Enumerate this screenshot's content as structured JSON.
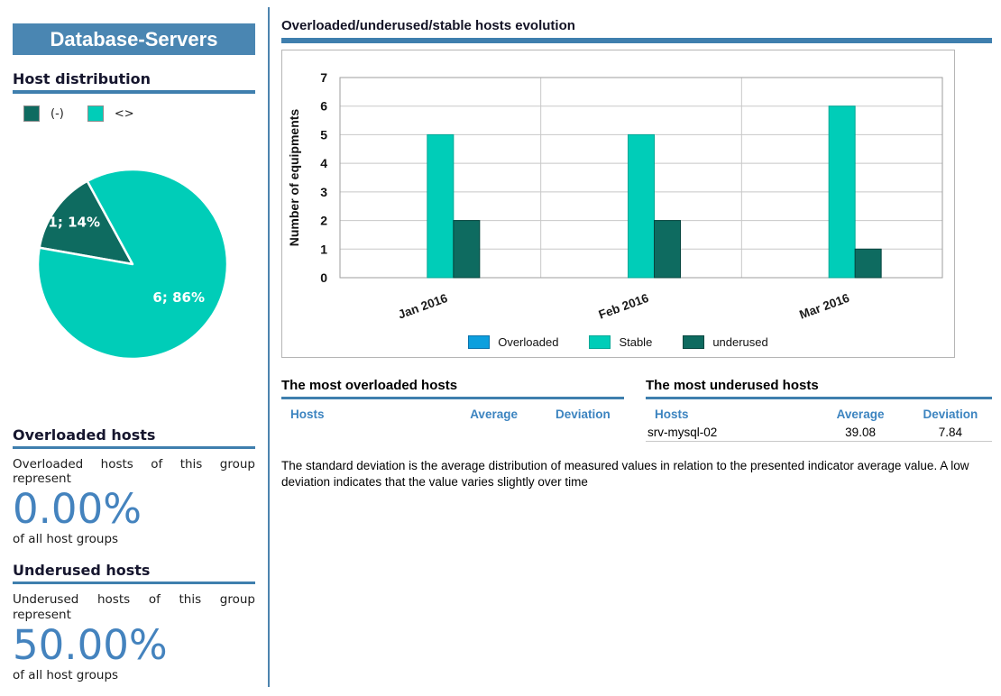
{
  "panel": {
    "title": "Database-Servers",
    "host_distribution": {
      "heading": "Host distribution",
      "legend": [
        {
          "label": "(-)",
          "color": "#0E6B60"
        },
        {
          "label": "<>",
          "color": "#00CDB8"
        }
      ]
    },
    "overloaded": {
      "heading": "Overloaded hosts",
      "text": "Overloaded hosts of this group represent",
      "value": "0.00%",
      "suffix": "of all host groups"
    },
    "underused": {
      "heading": "Underused hosts",
      "text": "Underused hosts of this group represent",
      "value": "50.00%",
      "suffix": "of all host groups"
    }
  },
  "main": {
    "chart_heading": "Overloaded/underused/stable hosts evolution",
    "overloaded_table": {
      "heading": "The most overloaded hosts",
      "columns": [
        "Hosts",
        "Average",
        "Deviation"
      ],
      "rows": []
    },
    "underused_table": {
      "heading": "The most underused hosts",
      "columns": [
        "Hosts",
        "Average",
        "Deviation"
      ],
      "rows": [
        [
          "srv-mysql-02",
          "39.08",
          "7.84"
        ]
      ]
    },
    "note": "The standard deviation is the average distribution of measured values in relation to the presented indicator average value. A low  deviation indicates that the value varies slightly over time"
  },
  "colors": {
    "steel_blue": "#4A86B2",
    "underline_blue": "#3f7fae",
    "percent_blue": "#4483BE",
    "table_header_blue": "#3C84C0",
    "stable_teal": "#00CDB8",
    "underused_teal": "#0E6B60",
    "overloaded_blue": "#0C9FDE"
  },
  "chart_data": [
    {
      "type": "pie",
      "title": "Host distribution",
      "labels": [
        "(-)",
        "<>"
      ],
      "values": [
        1,
        6
      ],
      "slice_labels": [
        "1; 14%",
        "6; 86%"
      ],
      "colors": [
        "#0E6B60",
        "#00CDB8"
      ],
      "start_angle_deg": 170,
      "direction": "clockwise"
    },
    {
      "type": "bar",
      "title": "Overloaded/underused/stable hosts evolution",
      "categories": [
        "Jan 2016",
        "Feb 2016",
        "Mar 2016"
      ],
      "series": [
        {
          "name": "Overloaded",
          "values": [
            0,
            0,
            0
          ],
          "color": "#0C9FDE",
          "border": "#0A72AB"
        },
        {
          "name": "Stable",
          "values": [
            5,
            5,
            6
          ],
          "color": "#00CDB8",
          "border": "#00A896"
        },
        {
          "name": "underused",
          "values": [
            2,
            2,
            1
          ],
          "color": "#0E6B60",
          "border": "#04453E"
        }
      ],
      "xlabel": "",
      "ylabel": "Number of equipments",
      "ylim": [
        0,
        7
      ],
      "yticks": [
        0,
        1,
        2,
        3,
        4,
        5,
        6,
        7
      ],
      "grid": true,
      "legend_position": "bottom"
    }
  ]
}
